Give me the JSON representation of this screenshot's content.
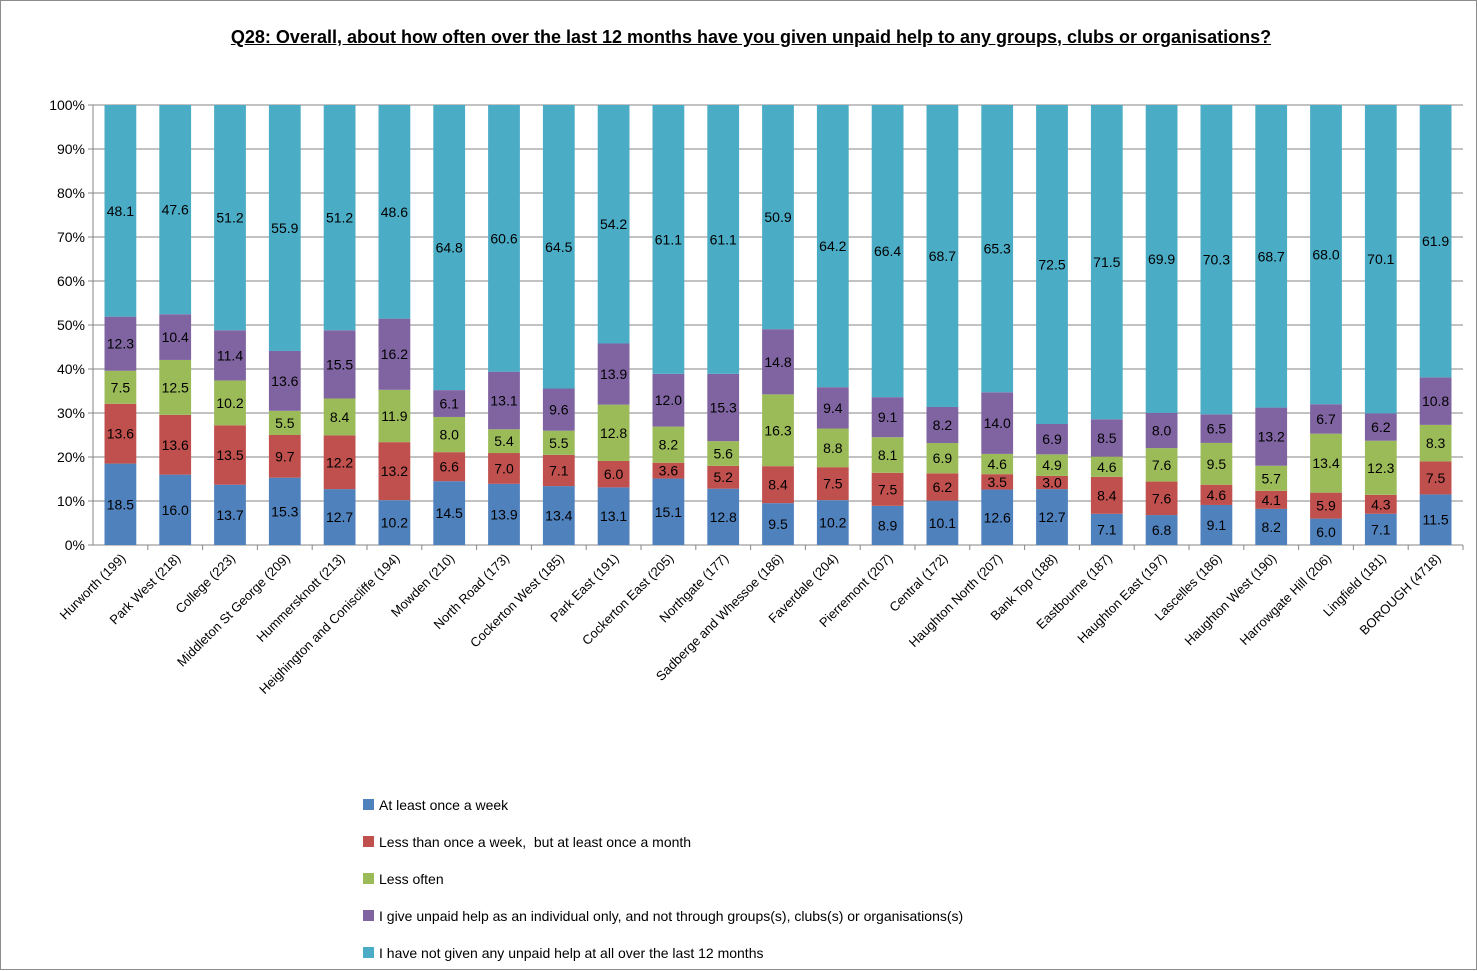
{
  "chart_data": {
    "type": "bar",
    "stacked": "percent",
    "title": "Q28: Overall, about how often over the last 12 months have you given unpaid help to any groups, clubs or organisations?",
    "ylim": [
      0,
      100
    ],
    "yticks": [
      "0%",
      "10%",
      "20%",
      "30%",
      "40%",
      "50%",
      "60%",
      "70%",
      "80%",
      "90%",
      "100%"
    ],
    "grid": true,
    "legend_position": "bottom",
    "categories": [
      "Hurworth (199)",
      "Park West (218)",
      "College (223)",
      "Middleton St George (209)",
      "Hummersknott (213)",
      "Heighington and Coniscliffe (194)",
      "Mowden (210)",
      "North Road (173)",
      "Cockerton West (185)",
      "Park East (191)",
      "Cockerton East (205)",
      "Northgate (177)",
      "Sadberge and Whessoe (186)",
      "Faverdale (204)",
      "Pierremont (207)",
      "Central (172)",
      "Haughton North (207)",
      "Bank Top (188)",
      "Eastbourne (187)",
      "Haughton East (197)",
      "Lascelles (186)",
      "Haughton West (190)",
      "Harrowgate Hill (206)",
      "Lingfield (181)",
      "BOROUGH (4718)"
    ],
    "series": [
      {
        "name": "At least once a week",
        "color": "#4f81bd",
        "values": [
          18.5,
          16.0,
          13.7,
          15.3,
          12.7,
          10.2,
          14.5,
          13.9,
          13.4,
          13.1,
          15.1,
          12.8,
          9.5,
          10.2,
          8.9,
          10.1,
          12.6,
          12.7,
          7.1,
          6.8,
          9.1,
          8.2,
          6.0,
          7.1,
          11.5
        ]
      },
      {
        "name": "Less than once a week,  but at least once a month",
        "color": "#c0504d",
        "values": [
          13.6,
          13.6,
          13.5,
          9.7,
          12.2,
          13.2,
          6.6,
          7.0,
          7.1,
          6.0,
          3.6,
          5.2,
          8.4,
          7.5,
          7.5,
          6.2,
          3.5,
          3.0,
          8.4,
          7.6,
          4.6,
          4.1,
          5.9,
          4.3,
          7.5
        ]
      },
      {
        "name": "Less often",
        "color": "#9bbb59",
        "values": [
          7.5,
          12.5,
          10.2,
          5.5,
          8.4,
          11.9,
          8.0,
          5.4,
          5.5,
          12.8,
          8.2,
          5.6,
          16.3,
          8.8,
          8.1,
          6.9,
          4.6,
          4.9,
          4.6,
          7.6,
          9.5,
          5.7,
          13.4,
          12.3,
          8.3
        ]
      },
      {
        "name": "I give unpaid help as an individual only, and not through groups(s), clubs(s) or organisations(s)",
        "color": "#8064a2",
        "values": [
          12.3,
          10.4,
          11.4,
          13.6,
          15.5,
          16.2,
          6.1,
          13.1,
          9.6,
          13.9,
          12.0,
          15.3,
          14.8,
          9.4,
          9.1,
          8.2,
          14.0,
          6.9,
          8.5,
          8.0,
          6.5,
          13.2,
          6.7,
          6.2,
          10.8
        ]
      },
      {
        "name": "I have not given any unpaid help at all over the last 12 months",
        "color": "#4bacc6",
        "values": [
          48.1,
          47.6,
          51.2,
          55.9,
          51.2,
          48.6,
          64.8,
          60.6,
          64.5,
          54.2,
          61.1,
          61.1,
          50.9,
          64.2,
          66.4,
          68.7,
          65.3,
          72.5,
          71.5,
          69.9,
          70.3,
          68.7,
          68.0,
          70.1,
          61.9
        ]
      }
    ]
  }
}
